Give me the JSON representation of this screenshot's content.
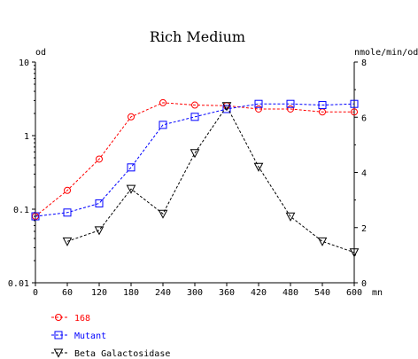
{
  "chart_data": {
    "type": "line",
    "title": "Rich Medium",
    "y_left_label": "od",
    "y_right_label": "nmole/min/od",
    "x_unit_label": "mn",
    "x": [
      0,
      60,
      120,
      180,
      240,
      300,
      360,
      420,
      480,
      540,
      600
    ],
    "x_ticks": [
      "0",
      "60",
      "120",
      "180",
      "240",
      "300",
      "360",
      "420",
      "480",
      "540",
      "600"
    ],
    "xlim": [
      0,
      600
    ],
    "y_left": {
      "scale": "log",
      "lim": [
        0.01,
        10
      ],
      "ticks": [
        0.01,
        0.1,
        1,
        10
      ],
      "tick_labels": [
        "0.01",
        "0.1",
        "1",
        "10"
      ]
    },
    "y_right": {
      "scale": "linear",
      "lim": [
        0,
        8
      ],
      "ticks": [
        0,
        2,
        4,
        6,
        8
      ],
      "tick_labels": [
        "0",
        "2",
        "4",
        "6",
        "8"
      ]
    },
    "grid": false,
    "legend_position": "bottom-left",
    "series": [
      {
        "name": "168",
        "axis": "left",
        "marker": "circle",
        "color": "#ff0000",
        "x": [
          0,
          60,
          120,
          180,
          240,
          300,
          360,
          420,
          480,
          540,
          600
        ],
        "values": [
          0.08,
          0.18,
          0.48,
          1.8,
          2.8,
          2.6,
          2.55,
          2.3,
          2.3,
          2.1,
          2.1
        ]
      },
      {
        "name": "Mutant",
        "axis": "left",
        "marker": "square",
        "color": "#0000ff",
        "x": [
          0,
          60,
          120,
          180,
          240,
          300,
          360,
          420,
          480,
          540,
          600
        ],
        "values": [
          0.08,
          0.09,
          0.12,
          0.37,
          1.4,
          1.8,
          2.3,
          2.7,
          2.7,
          2.6,
          2.7
        ]
      },
      {
        "name": "Beta Galactosidase",
        "axis": "right",
        "marker": "triangle-down",
        "color": "#000000",
        "x": [
          60,
          120,
          180,
          240,
          300,
          360,
          420,
          480,
          540,
          600
        ],
        "values": [
          1.5,
          1.9,
          3.4,
          2.5,
          4.7,
          6.4,
          4.2,
          2.4,
          1.5,
          1.1
        ]
      }
    ]
  }
}
